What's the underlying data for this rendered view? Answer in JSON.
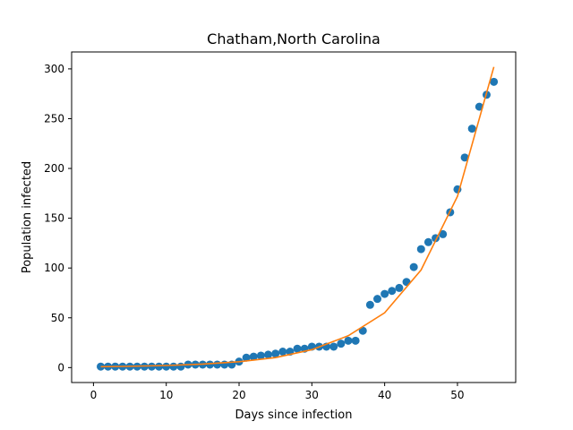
{
  "chart_data": {
    "type": "scatter",
    "title": "Chatham,North Carolina",
    "xlabel": "Days since infection",
    "ylabel": "Population infected",
    "xlim": [
      -3,
      58
    ],
    "ylim": [
      -15,
      317
    ],
    "xticks": [
      0,
      10,
      20,
      30,
      40,
      50
    ],
    "yticks": [
      0,
      50,
      100,
      150,
      200,
      250,
      300
    ],
    "grid": false,
    "series": [
      {
        "kind": "points",
        "color": "#1f77b4",
        "x": [
          1,
          2,
          3,
          4,
          5,
          6,
          7,
          8,
          9,
          10,
          11,
          12,
          13,
          14,
          15,
          16,
          17,
          18,
          19,
          20,
          21,
          22,
          23,
          24,
          25,
          26,
          27,
          28,
          29,
          30,
          31,
          32,
          33,
          34,
          35,
          36,
          37,
          38,
          39,
          40,
          41,
          42,
          43,
          44,
          45,
          46,
          47,
          48,
          49,
          50,
          51,
          52,
          53,
          54,
          55
        ],
        "y": [
          1,
          1,
          1,
          1,
          1,
          1,
          1,
          1,
          1,
          1,
          1,
          1,
          3,
          3,
          3,
          3,
          3,
          3,
          3,
          6,
          10,
          11,
          12,
          13,
          14,
          16,
          16,
          19,
          19,
          21,
          21,
          21,
          21,
          24,
          27,
          27,
          37,
          63,
          69,
          74,
          77,
          80,
          86,
          101,
          119,
          126,
          130,
          134,
          156,
          179,
          211,
          240,
          262,
          274,
          287
        ]
      },
      {
        "kind": "curve",
        "color": "#ff7f0e",
        "x": [
          1,
          5,
          10,
          15,
          20,
          25,
          30,
          35,
          40,
          45,
          50,
          55
        ],
        "y": [
          0.9,
          1.3,
          2.1,
          3.5,
          5.9,
          10,
          18,
          32,
          55,
          98,
          172,
          302
        ]
      }
    ]
  }
}
